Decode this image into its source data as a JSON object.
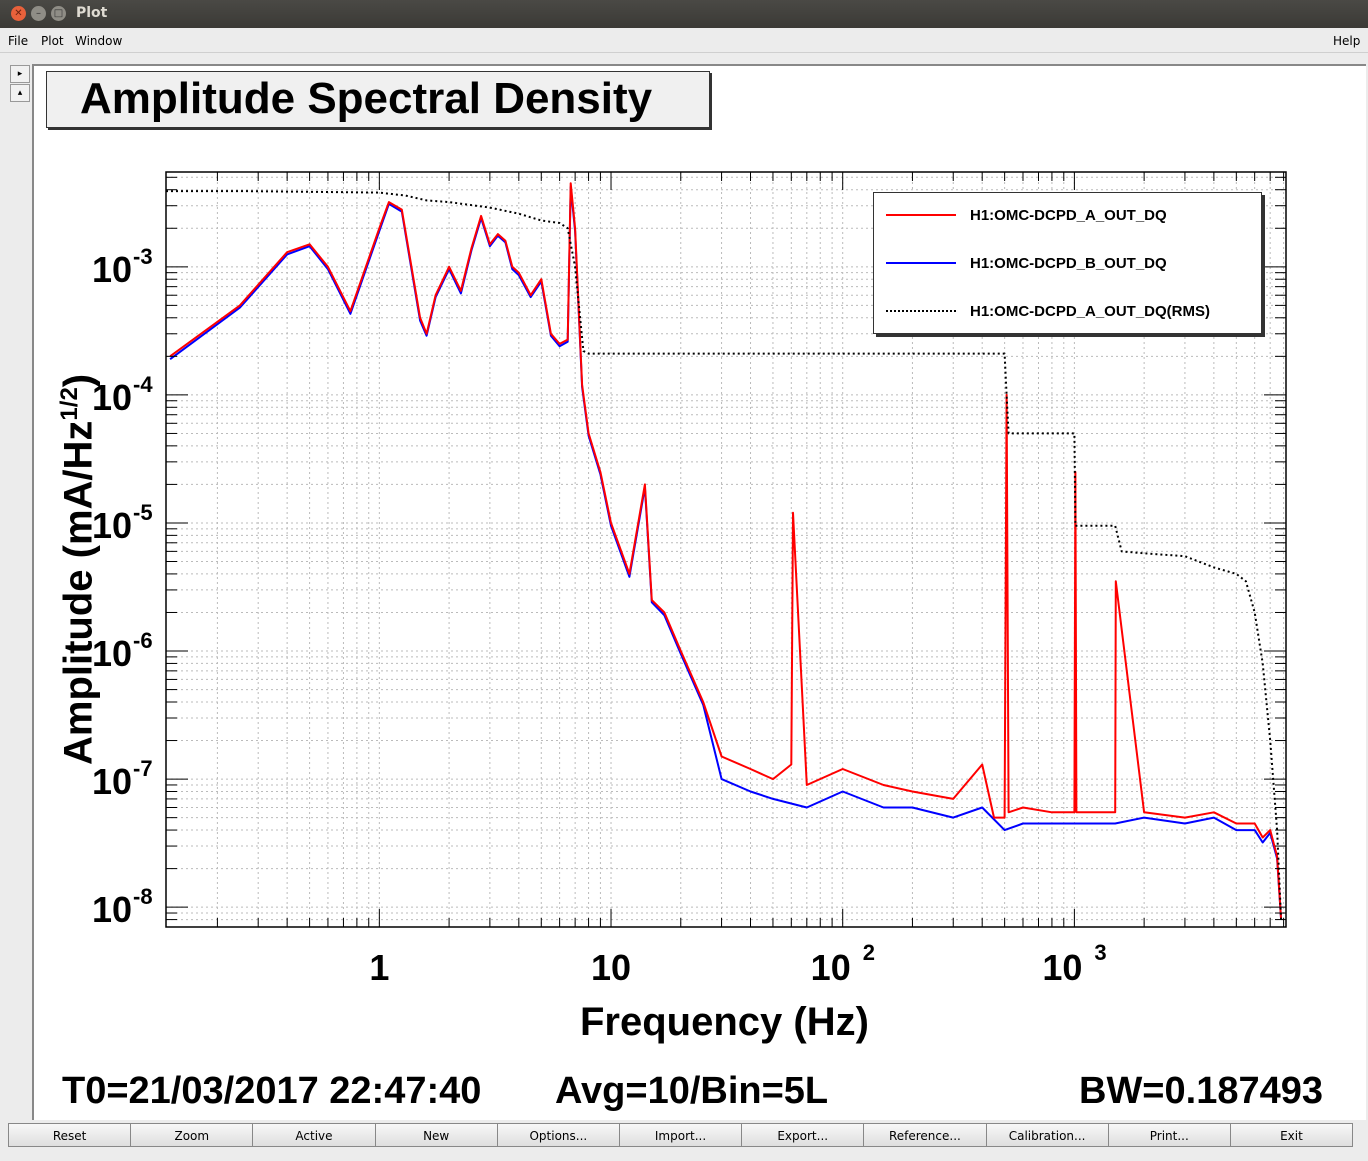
{
  "window": {
    "title": "Plot"
  },
  "menubar": {
    "file": "File",
    "plot": "Plot",
    "window": "Window",
    "help": "Help"
  },
  "plot": {
    "title": "Amplitude Spectral Density",
    "xlabel": "Frequency (Hz)",
    "ylabel_main": "Amplitude (mA/Hz",
    "ylabel_sup": "1/2",
    "ylabel_end": ")",
    "yticks": [
      {
        "base": "10",
        "exp": "-3"
      },
      {
        "base": "10",
        "exp": "-4"
      },
      {
        "base": "10",
        "exp": "-5"
      },
      {
        "base": "10",
        "exp": "-6"
      },
      {
        "base": "10",
        "exp": "-7"
      },
      {
        "base": "10",
        "exp": "-8"
      }
    ],
    "xticks": [
      {
        "base": "1",
        "exp": ""
      },
      {
        "base": "10",
        "exp": ""
      },
      {
        "base": "10",
        "exp": "2"
      },
      {
        "base": "10",
        "exp": "3"
      }
    ]
  },
  "legend": {
    "entries": [
      {
        "label": "H1:OMC-DCPD_A_OUT_DQ",
        "color": "#ff0000",
        "style": "solid"
      },
      {
        "label": "H1:OMC-DCPD_B_OUT_DQ",
        "color": "#0000ff",
        "style": "solid"
      },
      {
        "label": "H1:OMC-DCPD_A_OUT_DQ(RMS)",
        "color": "#000000",
        "style": "dotted"
      }
    ]
  },
  "info": {
    "t0": "T0=21/03/2017 22:47:40",
    "avg": "Avg=10/Bin=5L",
    "bw": "BW=0.187493"
  },
  "buttons": [
    "Reset",
    "Zoom",
    "Active",
    "New",
    "Options...",
    "Import...",
    "Export...",
    "Reference...",
    "Calibration...",
    "Print...",
    "Exit"
  ],
  "chart_data": {
    "type": "line",
    "title": "Amplitude Spectral Density",
    "xlabel": "Frequency (Hz)",
    "ylabel": "Amplitude (mA/Hz^1/2)",
    "xscale": "log",
    "yscale": "log",
    "xlim": [
      0.12,
      8192
    ],
    "ylim": [
      7e-09,
      0.0055
    ],
    "grid": true,
    "legend_position": "top-right",
    "series": [
      {
        "name": "H1:OMC-DCPD_A_OUT_DQ",
        "color": "#ff0000",
        "x": [
          0.125,
          0.25,
          0.4,
          0.5,
          0.6,
          0.75,
          1.0,
          1.1,
          1.25,
          1.5,
          1.6,
          1.75,
          2.0,
          2.25,
          2.5,
          2.75,
          3.0,
          3.25,
          3.5,
          3.75,
          4.0,
          4.5,
          5.0,
          5.5,
          6.0,
          6.5,
          6.7,
          7.0,
          7.5,
          8.0,
          9.0,
          10,
          12,
          14,
          15,
          17,
          20,
          25,
          30,
          40,
          50,
          60,
          61,
          70,
          100,
          150,
          200,
          300,
          400,
          450,
          500,
          510,
          520,
          600,
          800,
          1000,
          1010,
          1020,
          1500,
          1510,
          2000,
          3000,
          4000,
          5000,
          6000,
          6500,
          7000,
          7500,
          7800
        ],
        "y": [
          0.0002,
          0.0005,
          0.0013,
          0.0015,
          0.001,
          0.00045,
          0.002,
          0.0032,
          0.0028,
          0.0004,
          0.0003,
          0.0006,
          0.001,
          0.00065,
          0.0014,
          0.0025,
          0.0015,
          0.0018,
          0.0016,
          0.001,
          0.0009,
          0.0006,
          0.0008,
          0.0003,
          0.00025,
          0.00027,
          0.0045,
          0.002,
          0.00012,
          5e-05,
          2.5e-05,
          1e-05,
          4e-06,
          2e-05,
          2.5e-06,
          2e-06,
          1e-06,
          4e-07,
          1.5e-07,
          1.2e-07,
          1e-07,
          1.3e-07,
          1.2e-05,
          9e-08,
          1.2e-07,
          9e-08,
          8e-08,
          7e-08,
          1.3e-07,
          5e-08,
          5e-08,
          0.0001,
          5.5e-08,
          6e-08,
          5.5e-08,
          5.5e-08,
          2.5e-05,
          5.5e-08,
          5.5e-08,
          3.5e-06,
          5.5e-08,
          5e-08,
          5.5e-08,
          4.5e-08,
          4.5e-08,
          3.5e-08,
          4e-08,
          2.5e-08,
          8e-09
        ]
      },
      {
        "name": "H1:OMC-DCPD_B_OUT_DQ",
        "color": "#0000ff",
        "x": [
          0.125,
          0.25,
          0.4,
          0.5,
          0.6,
          0.75,
          1.0,
          1.1,
          1.25,
          1.5,
          1.6,
          1.75,
          2.0,
          2.25,
          2.5,
          2.75,
          3.0,
          3.25,
          3.5,
          3.75,
          4.0,
          4.5,
          5.0,
          5.5,
          6.0,
          6.5,
          6.7,
          7.0,
          7.5,
          8.0,
          9.0,
          10,
          12,
          14,
          15,
          17,
          20,
          25,
          30,
          40,
          50,
          70,
          100,
          150,
          200,
          300,
          400,
          500,
          600,
          800,
          1000,
          1500,
          2000,
          3000,
          4000,
          5000,
          6000,
          6500,
          7000,
          7500,
          7800
        ],
        "y": [
          0.00019,
          0.00048,
          0.00125,
          0.00145,
          0.00096,
          0.00043,
          0.0019,
          0.0031,
          0.0027,
          0.00038,
          0.00029,
          0.00058,
          0.00096,
          0.00062,
          0.00135,
          0.0024,
          0.00145,
          0.00175,
          0.00155,
          0.00096,
          0.00086,
          0.00058,
          0.00077,
          0.00029,
          0.00024,
          0.00026,
          0.0042,
          0.0019,
          0.000115,
          4.8e-05,
          2.4e-05,
          9.5e-06,
          3.8e-06,
          1.9e-05,
          2.4e-06,
          1.9e-06,
          9.5e-07,
          3.8e-07,
          1e-07,
          8e-08,
          7e-08,
          6e-08,
          8e-08,
          6e-08,
          6e-08,
          5e-08,
          6e-08,
          4e-08,
          4.5e-08,
          4.5e-08,
          4.5e-08,
          4.5e-08,
          5e-08,
          4.5e-08,
          5e-08,
          4e-08,
          4e-08,
          3.2e-08,
          3.8e-08,
          2.4e-08,
          8e-09
        ]
      },
      {
        "name": "H1:OMC-DCPD_A_OUT_DQ(RMS)",
        "color": "#000000",
        "x": [
          0.12,
          0.25,
          0.5,
          1.0,
          1.3,
          1.6,
          2.0,
          3.0,
          4.0,
          5.0,
          6.0,
          6.5,
          7.0,
          7.6,
          8.0,
          20,
          100,
          400,
          500,
          510,
          520,
          600,
          900,
          1000,
          1010,
          1400,
          1500,
          1600,
          2000,
          3000,
          4000,
          5000,
          5500,
          6000,
          6500,
          7000,
          7500,
          7800
        ],
        "y": [
          0.0039,
          0.0039,
          0.00385,
          0.0038,
          0.0036,
          0.0033,
          0.0032,
          0.0029,
          0.0026,
          0.0023,
          0.0022,
          0.002,
          0.001,
          0.00022,
          0.00021,
          0.00021,
          0.00021,
          0.00021,
          0.00021,
          0.0001,
          5e-05,
          5e-05,
          5e-05,
          5e-05,
          9.5e-06,
          9.5e-06,
          9.5e-06,
          6e-06,
          5.8e-06,
          5.5e-06,
          4.5e-06,
          4e-06,
          3.5e-06,
          2e-06,
          8e-07,
          2e-07,
          4e-08,
          8e-09
        ]
      }
    ]
  }
}
